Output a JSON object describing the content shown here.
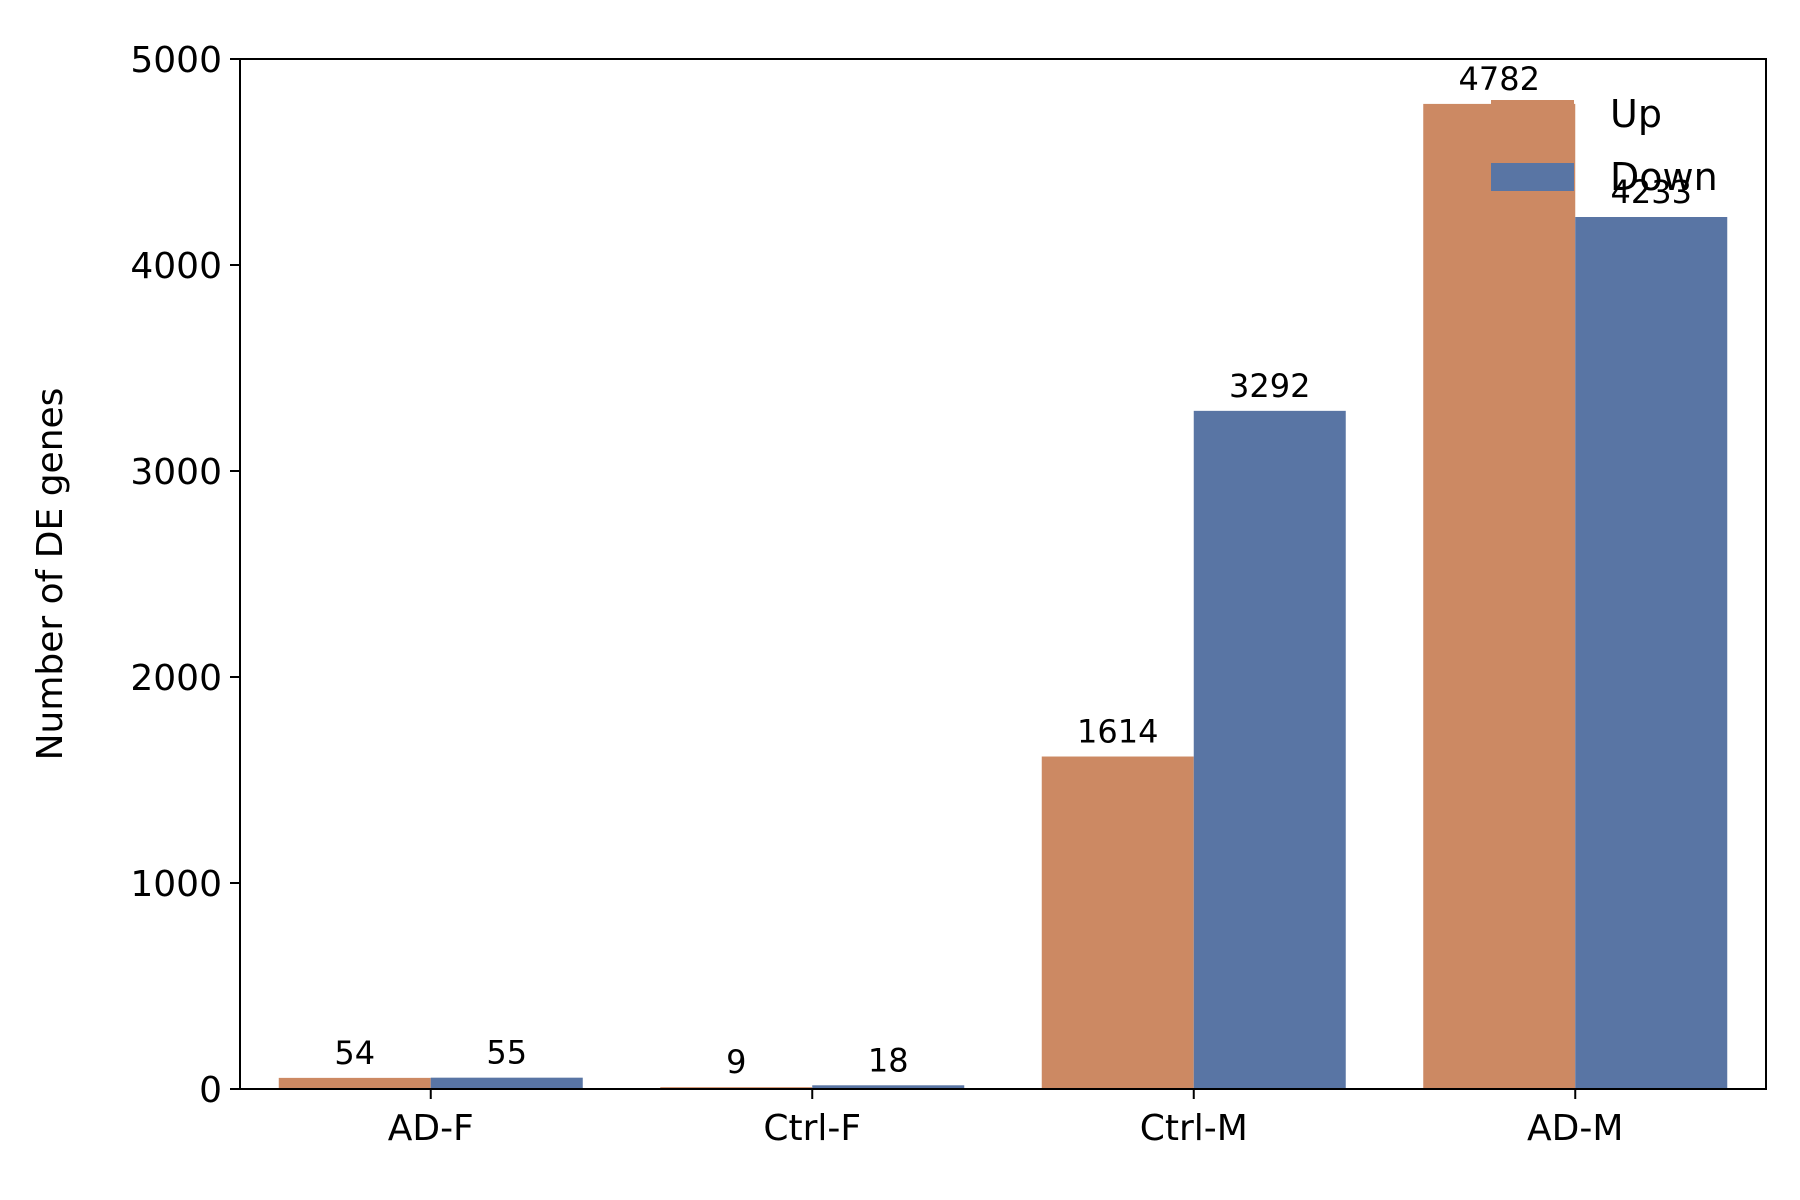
{
  "chart_data": {
    "type": "bar",
    "title": "",
    "xlabel": "",
    "ylabel": "Number of DE genes",
    "categories": [
      "AD-F",
      "Ctrl-F",
      "Ctrl-M",
      "AD-M"
    ],
    "series": [
      {
        "name": "Up",
        "values": [
          54,
          9,
          1614,
          4782
        ],
        "color": "#CC8963"
      },
      {
        "name": "Down",
        "values": [
          55,
          18,
          3292,
          4233
        ],
        "color": "#5975A4"
      }
    ],
    "ylim": [
      0,
      5000
    ],
    "yticks": [
      0,
      1000,
      2000,
      3000,
      4000,
      5000
    ],
    "grid": false,
    "legend_position": "top-right",
    "data_labels": true
  }
}
